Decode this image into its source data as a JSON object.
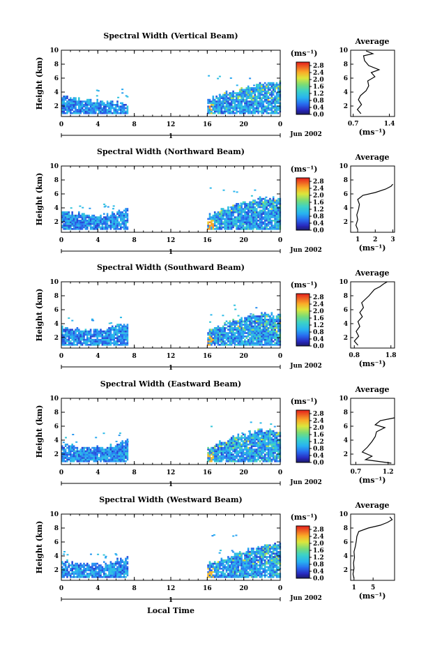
{
  "figure": {
    "footer_xlabel": "Local Time",
    "date_label": "Jun 2002",
    "day_label": "1",
    "colorbar_unit": "(ms⁻¹)",
    "avg_unit": "(ms⁻¹)",
    "avg_title": "Average",
    "ylabel": "Height (km)"
  },
  "chart_data": [
    {
      "type": "heatmap",
      "title": "Spectral Width (Vertical Beam)",
      "ylabel": "Height (km)",
      "xlabel": "Local Time",
      "xlim": [
        0,
        24
      ],
      "ylim": [
        0.5,
        10
      ],
      "xticks": [
        "0",
        "4",
        "8",
        "12",
        "16",
        "20",
        "0"
      ],
      "yticks": [
        "2",
        "4",
        "6",
        "8",
        "10"
      ],
      "colorbar": {
        "ticks": [
          "0.0",
          "0.4",
          "0.8",
          "1.2",
          "1.6",
          "2.0",
          "2.4",
          "2.8"
        ],
        "range": [
          0,
          3.0
        ]
      },
      "coverage": [
        {
          "x": [
            0,
            7.3
          ],
          "top_km": [
            3.5,
            3.3,
            3.1,
            2.9,
            2.8,
            2.7,
            2.6,
            2.6
          ]
        },
        {
          "x": [
            16,
            24
          ],
          "top_km": [
            3.0,
            3.6,
            4.2,
            4.5,
            4.9,
            5.3,
            5.5,
            5.7
          ]
        }
      ],
      "average": {
        "title": "Average",
        "xlabel": "(ms⁻¹)",
        "xticks": [
          "0.7",
          "1.4"
        ],
        "xlim": [
          0.65,
          1.5
        ],
        "profile": [
          [
            0.85,
            0.9
          ],
          [
            0.78,
            1.5
          ],
          [
            0.86,
            2.2
          ],
          [
            0.8,
            2.9
          ],
          [
            0.84,
            3.5
          ],
          [
            0.95,
            4.2
          ],
          [
            1.0,
            4.9
          ],
          [
            0.98,
            5.6
          ],
          [
            1.12,
            6.2
          ],
          [
            1.05,
            6.8
          ],
          [
            1.2,
            7.2
          ],
          [
            1.0,
            7.8
          ],
          [
            0.92,
            8.5
          ],
          [
            0.9,
            9.2
          ],
          [
            1.08,
            9.5
          ],
          [
            0.95,
            9.9
          ]
        ]
      }
    },
    {
      "type": "heatmap",
      "title": "Spectral Width (Northward Beam)",
      "ylabel": "Height (km)",
      "xlim": [
        0,
        24
      ],
      "ylim": [
        0.5,
        10
      ],
      "xticks": [
        "0",
        "4",
        "8",
        "12",
        "16",
        "20",
        "0"
      ],
      "yticks": [
        "2",
        "4",
        "6",
        "8",
        "10"
      ],
      "colorbar": {
        "ticks": [
          "0.0",
          "0.4",
          "0.8",
          "1.2",
          "1.6",
          "2.0",
          "2.4",
          "2.8"
        ],
        "range": [
          0,
          3.0
        ]
      },
      "coverage": [
        {
          "x": [
            0,
            7.3
          ],
          "top_km": [
            3.6,
            3.4,
            3.2,
            3.1,
            3.0,
            3.2,
            3.6,
            4.0
          ]
        },
        {
          "x": [
            16,
            24
          ],
          "top_km": [
            2.9,
            3.6,
            4.2,
            4.8,
            5.0,
            5.4,
            5.5,
            5.6
          ]
        }
      ],
      "average": {
        "title": "Average",
        "xlabel": "(ms⁻¹)",
        "xticks": [
          "1",
          "2",
          "3"
        ],
        "xlim": [
          0.6,
          3.1
        ],
        "profile": [
          [
            1.0,
            0.9
          ],
          [
            0.9,
            1.5
          ],
          [
            1.0,
            2.3
          ],
          [
            0.95,
            3.0
          ],
          [
            1.05,
            3.8
          ],
          [
            1.1,
            4.5
          ],
          [
            1.0,
            5.2
          ],
          [
            1.3,
            5.8
          ],
          [
            2.0,
            6.2
          ],
          [
            2.6,
            6.7
          ],
          [
            2.9,
            7.1
          ],
          [
            3.0,
            7.4
          ]
        ]
      }
    },
    {
      "type": "heatmap",
      "title": "Spectral Width (Southward Beam)",
      "ylabel": "Height (km)",
      "xlim": [
        0,
        24
      ],
      "ylim": [
        0.5,
        10
      ],
      "xticks": [
        "0",
        "4",
        "8",
        "12",
        "16",
        "20",
        "0"
      ],
      "yticks": [
        "2",
        "4",
        "6",
        "8",
        "10"
      ],
      "colorbar": {
        "ticks": [
          "0.0",
          "0.4",
          "0.8",
          "1.2",
          "1.6",
          "2.0",
          "2.4",
          "2.8"
        ],
        "range": [
          0,
          3.0
        ]
      },
      "coverage": [
        {
          "x": [
            0,
            7.3
          ],
          "top_km": [
            3.6,
            3.5,
            3.3,
            3.2,
            3.2,
            3.5,
            3.9,
            4.1
          ]
        },
        {
          "x": [
            16,
            24
          ],
          "top_km": [
            3.2,
            3.8,
            4.4,
            5.0,
            5.2,
            5.6,
            5.5,
            5.6
          ]
        }
      ],
      "average": {
        "title": "Average",
        "xlabel": "(ms⁻¹)",
        "xticks": [
          "0.8",
          "1.8"
        ],
        "xlim": [
          0.7,
          1.9
        ],
        "profile": [
          [
            0.9,
            0.9
          ],
          [
            0.8,
            1.5
          ],
          [
            0.92,
            2.2
          ],
          [
            0.85,
            2.9
          ],
          [
            0.95,
            3.6
          ],
          [
            0.9,
            4.3
          ],
          [
            1.02,
            5.0
          ],
          [
            0.95,
            5.6
          ],
          [
            1.05,
            6.3
          ],
          [
            1.0,
            7.0
          ],
          [
            1.2,
            8.0
          ],
          [
            1.35,
            8.9
          ],
          [
            1.5,
            9.3
          ],
          [
            1.6,
            9.7
          ],
          [
            1.7,
            10.0
          ]
        ]
      }
    },
    {
      "type": "heatmap",
      "title": "Spectral Width (Eastward Beam)",
      "ylabel": "Height (km)",
      "xlim": [
        0,
        24
      ],
      "ylim": [
        0.5,
        10
      ],
      "xticks": [
        "0",
        "4",
        "8",
        "12",
        "16",
        "20",
        "0"
      ],
      "yticks": [
        "2",
        "4",
        "6",
        "8",
        "10"
      ],
      "colorbar": {
        "ticks": [
          "0.0",
          "0.4",
          "0.8",
          "1.2",
          "1.6",
          "2.0",
          "2.4",
          "2.8"
        ],
        "range": [
          0,
          3.0
        ]
      },
      "coverage": [
        {
          "x": [
            0,
            7.3
          ],
          "top_km": [
            3.4,
            3.3,
            3.1,
            3.0,
            3.0,
            3.2,
            3.7,
            4.2
          ]
        },
        {
          "x": [
            16,
            24
          ],
          "top_km": [
            3.0,
            3.7,
            4.3,
            4.8,
            5.2,
            5.5,
            5.4,
            5.4
          ]
        }
      ],
      "average": {
        "title": "Average",
        "xlabel": "(ms⁻¹)",
        "xticks": [
          "0.7",
          "1.2"
        ],
        "xlim": [
          0.62,
          1.3
        ],
        "profile": [
          [
            1.25,
            0.7
          ],
          [
            0.85,
            1.2
          ],
          [
            0.95,
            1.7
          ],
          [
            0.8,
            2.3
          ],
          [
            0.88,
            3.0
          ],
          [
            0.95,
            3.8
          ],
          [
            1.0,
            4.5
          ],
          [
            1.02,
            5.2
          ],
          [
            1.15,
            5.8
          ],
          [
            1.0,
            6.2
          ],
          [
            1.08,
            6.8
          ],
          [
            1.3,
            7.2
          ]
        ]
      }
    },
    {
      "type": "heatmap",
      "title": "Spectral Width (Westward Beam)",
      "ylabel": "Height (km)",
      "xlim": [
        0,
        24
      ],
      "ylim": [
        0.5,
        10
      ],
      "xticks": [
        "0",
        "4",
        "8",
        "12",
        "16",
        "20",
        "0"
      ],
      "yticks": [
        "2",
        "4",
        "6",
        "8",
        "10"
      ],
      "colorbar": {
        "ticks": [
          "0.0",
          "0.4",
          "0.8",
          "1.2",
          "1.6",
          "2.0",
          "2.4",
          "2.8"
        ],
        "range": [
          0,
          3.0
        ]
      },
      "coverage": [
        {
          "x": [
            0,
            7.3
          ],
          "top_km": [
            3.3,
            3.2,
            3.0,
            2.9,
            2.9,
            3.2,
            3.6,
            4.0
          ]
        },
        {
          "x": [
            16,
            24
          ],
          "top_km": [
            3.0,
            3.4,
            4.0,
            4.6,
            5.0,
            5.4,
            5.8,
            6.0
          ]
        }
      ],
      "average": {
        "title": "Average",
        "xlabel": "(ms⁻¹)",
        "xticks": [
          "1",
          "5"
        ],
        "xlim": [
          0.3,
          9.5
        ],
        "profile": [
          [
            1.0,
            0.8
          ],
          [
            0.8,
            1.4
          ],
          [
            1.0,
            2.2
          ],
          [
            0.9,
            3.0
          ],
          [
            1.1,
            3.8
          ],
          [
            1.0,
            4.6
          ],
          [
            1.3,
            5.4
          ],
          [
            1.5,
            6.2
          ],
          [
            1.6,
            6.8
          ],
          [
            2.0,
            7.5
          ],
          [
            4.0,
            8.0
          ],
          [
            6.5,
            8.4
          ],
          [
            8.0,
            8.8
          ],
          [
            9.0,
            9.2
          ],
          [
            8.5,
            9.6
          ]
        ]
      }
    }
  ]
}
